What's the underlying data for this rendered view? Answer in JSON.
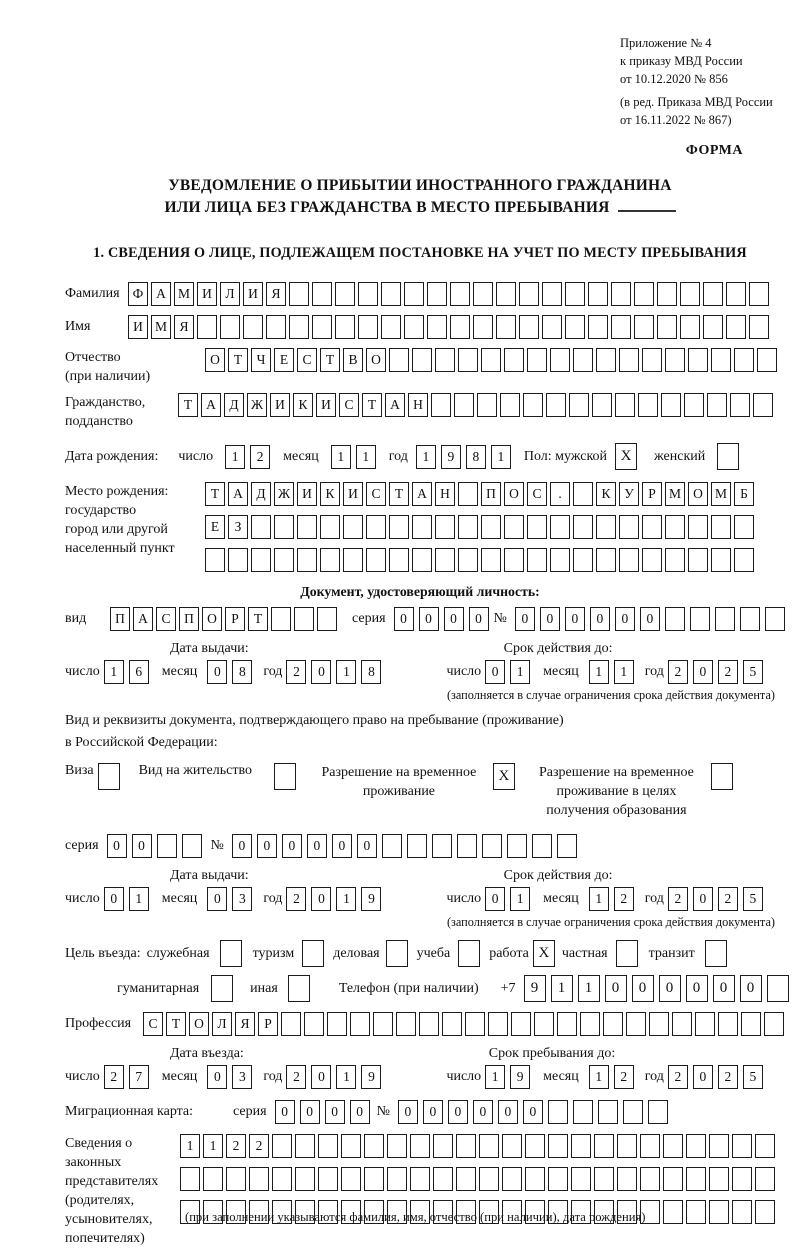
{
  "header": {
    "line1": "Приложение № 4",
    "line2": "к приказу МВД России",
    "line3": "от 10.12.2020 № 856",
    "line4": "(в ред. Приказа МВД России",
    "line5": "от 16.11.2022 № 867)",
    "forma": "ФОРМА"
  },
  "title": {
    "line1": "УВЕДОМЛЕНИЕ О ПРИБЫТИИ ИНОСТРАННОГО ГРАЖДАНИНА",
    "line2": "ИЛИ ЛИЦА БЕЗ ГРАЖДАНСТВА В МЕСТО ПРЕБЫВАНИЯ"
  },
  "section1_heading": "1. СВЕДЕНИЯ О ЛИЦЕ, ПОДЛЕЖАЩЕМ ПОСТАНОВКЕ НА УЧЕТ ПО МЕСТУ ПРЕБЫВАНИЯ",
  "person": {
    "surname_label": "Фамилия",
    "surname": {
      "text": "ФАМИЛИЯ",
      "len": 28
    },
    "name_label": "Имя",
    "name": {
      "text": "ИМЯ",
      "len": 28
    },
    "patronymic_label": "Отчество",
    "patronymic_note": "(при наличии)",
    "patronymic": {
      "text": "ОТЧЕСТВО",
      "len": 25
    },
    "citizenship_label1": "Гражданство,",
    "citizenship_label2": "подданство",
    "citizenship": {
      "text": "ТАДЖИКИСТАН",
      "len": 26
    },
    "birthdate_label": "Дата рождения:",
    "day_label": "число",
    "month_label": "месяц",
    "year_label": "год",
    "birth_day": {
      "text": "12",
      "len": 2
    },
    "birth_month": {
      "text": "11",
      "len": 2
    },
    "birth_year": {
      "text": "1981",
      "len": 4
    },
    "sex_male_label": "Пол: мужской",
    "sex_female_label": "женский",
    "sex_male": {
      "text": "X",
      "len": 1
    },
    "sex_female": {
      "text": "",
      "len": 1
    },
    "birthplace_label1": "Место рождения:",
    "birthplace_label2": "государство",
    "birthplace_label3": "город или другой",
    "birthplace_label4": "населенный пункт",
    "birthplace_row1": {
      "text": "ТАДЖИКИСТАН ПОС. КУРМОМБ",
      "len": 24
    },
    "birthplace_row2": {
      "text": "ЕЗ",
      "len": 24
    },
    "birthplace_row3": {
      "text": "",
      "len": 24
    }
  },
  "identity_doc": {
    "heading": "Документ, удостоверяющий личность:",
    "type_label": "вид",
    "type": {
      "text": "ПАСПОРТ",
      "len": 10
    },
    "series_label": "серия",
    "series": {
      "text": "0000",
      "len": 4
    },
    "number_label": "№",
    "number": {
      "text": "000000",
      "len": 11
    },
    "issue_label": "Дата выдачи:",
    "valid_label": "Срок действия до:",
    "day_label": "число",
    "month_label": "месяц",
    "year_label": "год",
    "issue_day": {
      "text": "16",
      "len": 2
    },
    "issue_month": {
      "text": "08",
      "len": 2
    },
    "issue_year": {
      "text": "2018",
      "len": 4
    },
    "valid_day": {
      "text": "01",
      "len": 2
    },
    "valid_month": {
      "text": "11",
      "len": 2
    },
    "valid_year": {
      "text": "2025",
      "len": 4
    },
    "note": "(заполняется в случае ограничения срока действия документа)"
  },
  "residence_doc": {
    "line1": "Вид и реквизиты документа, подтверждающего право на пребывание (проживание)",
    "line2": "в Российской Федерации:",
    "visa_label": "Виза",
    "visa": {
      "text": "",
      "len": 1
    },
    "residence_permit_label": "Вид на жительство",
    "residence_permit": {
      "text": "",
      "len": 1
    },
    "temp_residence_label1": "Разрешение на временное",
    "temp_residence_label2": "проживание",
    "temp_residence": {
      "text": "X",
      "len": 1
    },
    "temp_edu_label1": "Разрешение на временное",
    "temp_edu_label2": "проживание в целях",
    "temp_edu_label3": "получения образования",
    "temp_edu": {
      "text": "",
      "len": 1
    },
    "series_label": "серия",
    "series": {
      "text": "00",
      "len": 4
    },
    "number_label": "№",
    "number": {
      "text": "000000",
      "len": 14
    },
    "issue_label": "Дата выдачи:",
    "valid_label": "Срок действия до:",
    "day_label": "число",
    "month_label": "месяц",
    "year_label": "год",
    "issue_day": {
      "text": "01",
      "len": 2
    },
    "issue_month": {
      "text": "03",
      "len": 2
    },
    "issue_year": {
      "text": "2019",
      "len": 4
    },
    "valid_day": {
      "text": "01",
      "len": 2
    },
    "valid_month": {
      "text": "12",
      "len": 2
    },
    "valid_year": {
      "text": "2025",
      "len": 4
    },
    "note": "(заполняется в случае ограничения срока действия документа)"
  },
  "visit": {
    "purpose_label": "Цель въезда:",
    "purposes_row1": [
      {
        "label": "служебная",
        "box": {
          "text": "",
          "len": 1
        }
      },
      {
        "label": "туризм",
        "box": {
          "text": "",
          "len": 1
        }
      },
      {
        "label": "деловая",
        "box": {
          "text": "",
          "len": 1
        }
      },
      {
        "label": "учеба",
        "box": {
          "text": "",
          "len": 1
        }
      },
      {
        "label": "работа",
        "box": {
          "text": "X",
          "len": 1
        }
      },
      {
        "label": "частная",
        "box": {
          "text": "",
          "len": 1
        }
      },
      {
        "label": "транзит",
        "box": {
          "text": "",
          "len": 1
        }
      }
    ],
    "purposes_row2": [
      {
        "label": "гуманитарная",
        "box": {
          "text": "",
          "len": 1
        }
      },
      {
        "label": "иная",
        "box": {
          "text": "",
          "len": 1
        }
      }
    ],
    "phone_label": "Телефон (при наличии)",
    "phone_prefix": "+7",
    "phone": {
      "text": "911000000",
      "len": 10
    },
    "profession_label": "Профессия",
    "profession": {
      "text": "СТОЛЯР",
      "len": 28
    },
    "entry_label": "Дата въезда:",
    "stay_label": "Срок пребывания до:",
    "day_label": "число",
    "month_label": "месяц",
    "year_label": "год",
    "entry_day": {
      "text": "27",
      "len": 2
    },
    "entry_month": {
      "text": "03",
      "len": 2
    },
    "entry_year": {
      "text": "2019",
      "len": 4
    },
    "stay_day": {
      "text": "19",
      "len": 2
    },
    "stay_month": {
      "text": "12",
      "len": 2
    },
    "stay_year": {
      "text": "2025",
      "len": 4
    },
    "migration_label": "Миграционная карта:",
    "mig_series_label": "серия",
    "mig_series": {
      "text": "0000",
      "len": 4
    },
    "mig_number_label": "№",
    "mig_number": {
      "text": "000000",
      "len": 11
    }
  },
  "representatives": {
    "label1": "Сведения о",
    "label2": "законных",
    "label3": "представителях",
    "label4": "(родителях,",
    "label5": "усыновителях,",
    "label6": "попечителях)",
    "row1": {
      "text": "1122",
      "len": 26
    },
    "row2": {
      "text": "",
      "len": 26
    },
    "row3": {
      "text": "",
      "len": 26
    },
    "caption": "(при заполнении указываются фамилия, имя, отчество (при наличии), дата рождения)"
  }
}
